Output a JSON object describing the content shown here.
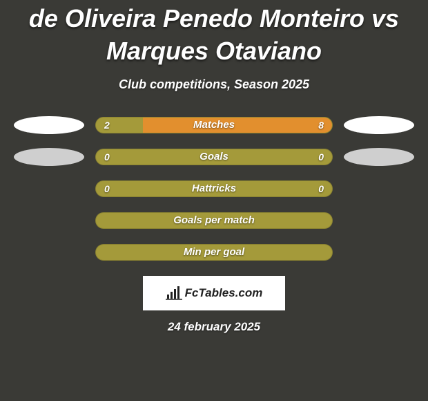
{
  "title": "de Oliveira Penedo Monteiro vs Marques Otaviano",
  "subtitle": "Club competitions, Season 2025",
  "date": "24 february 2025",
  "logo_text": "FcTables.com",
  "colors": {
    "background": "#3a3a36",
    "bar_olive": "#a49a3a",
    "bar_orange": "#e28f2e",
    "oval_white": "#ffffff",
    "oval_gray": "#cfcfcf",
    "text": "#ffffff"
  },
  "stats": [
    {
      "label": "Matches",
      "left_value": "2",
      "right_value": "8",
      "left_pct": 20,
      "right_pct": 80,
      "left_fill": "#a49a3a",
      "right_fill": "#e28f2e",
      "bg": "#a49a3a",
      "show_values": true,
      "left_oval": "#ffffff",
      "right_oval": "#ffffff"
    },
    {
      "label": "Goals",
      "left_value": "0",
      "right_value": "0",
      "left_pct": 0,
      "right_pct": 0,
      "left_fill": "#a49a3a",
      "right_fill": "#a49a3a",
      "bg": "#a49a3a",
      "show_values": true,
      "left_oval": "#cfcfcf",
      "right_oval": "#cfcfcf"
    },
    {
      "label": "Hattricks",
      "left_value": "0",
      "right_value": "0",
      "left_pct": 0,
      "right_pct": 0,
      "left_fill": "#a49a3a",
      "right_fill": "#a49a3a",
      "bg": "#a49a3a",
      "show_values": true,
      "left_oval": null,
      "right_oval": null
    },
    {
      "label": "Goals per match",
      "left_value": "",
      "right_value": "",
      "left_pct": 0,
      "right_pct": 0,
      "left_fill": "#a49a3a",
      "right_fill": "#a49a3a",
      "bg": "#a49a3a",
      "show_values": false,
      "left_oval": null,
      "right_oval": null
    },
    {
      "label": "Min per goal",
      "left_value": "",
      "right_value": "",
      "left_pct": 0,
      "right_pct": 0,
      "left_fill": "#a49a3a",
      "right_fill": "#a49a3a",
      "bg": "#a49a3a",
      "show_values": false,
      "left_oval": null,
      "right_oval": null
    }
  ]
}
